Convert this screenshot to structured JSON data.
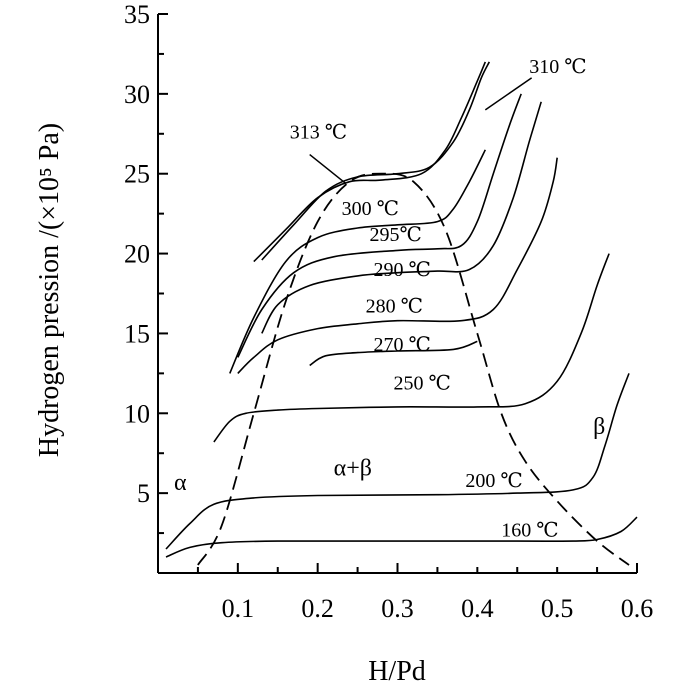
{
  "chart_data": {
    "type": "line",
    "title": "",
    "xlabel": "H/Pd",
    "ylabel": "Hydrogen pression /(×10⁵ Pa)",
    "xlim": [
      0.0,
      0.6
    ],
    "ylim": [
      0,
      35
    ],
    "x_ticks": [
      "0.1",
      "0.2",
      "0.3",
      "0.4",
      "0.5",
      "0.6"
    ],
    "y_ticks": [
      "5",
      "10",
      "15",
      "20",
      "25",
      "30",
      "35"
    ],
    "grid": false,
    "line_color": "#000000",
    "series": [
      {
        "name": "160 ℃",
        "x": [
          0.01,
          0.04,
          0.08,
          0.15,
          0.3,
          0.45,
          0.52,
          0.55,
          0.58,
          0.6
        ],
        "y": [
          1.0,
          1.6,
          1.9,
          2.0,
          2.0,
          2.0,
          2.0,
          2.1,
          2.6,
          3.5
        ]
      },
      {
        "name": "200 ℃",
        "x": [
          0.01,
          0.04,
          0.07,
          0.12,
          0.2,
          0.35,
          0.45,
          0.52,
          0.545,
          0.56,
          0.575,
          0.59
        ],
        "y": [
          1.5,
          3.1,
          4.3,
          4.7,
          4.85,
          4.9,
          5.0,
          5.2,
          6.0,
          8.0,
          10.5,
          12.5
        ]
      },
      {
        "name": "250 ℃",
        "x": [
          0.07,
          0.09,
          0.11,
          0.15,
          0.2,
          0.3,
          0.4,
          0.46,
          0.5,
          0.53,
          0.55,
          0.565
        ],
        "y": [
          8.2,
          9.5,
          10.0,
          10.2,
          10.3,
          10.4,
          10.4,
          10.6,
          12.0,
          15.0,
          18.0,
          20.0
        ]
      },
      {
        "name": "270 ℃",
        "x": [
          0.19,
          0.21,
          0.25,
          0.3,
          0.37,
          0.4
        ],
        "y": [
          13.0,
          13.6,
          13.8,
          13.9,
          14.0,
          14.5
        ]
      },
      {
        "name": "280 ℃",
        "x": [
          0.1,
          0.12,
          0.15,
          0.2,
          0.25,
          0.3,
          0.38,
          0.42,
          0.45,
          0.48,
          0.495,
          0.5
        ],
        "y": [
          12.5,
          13.5,
          14.6,
          15.3,
          15.6,
          15.8,
          15.8,
          16.5,
          19.0,
          22.0,
          24.5,
          26.0
        ]
      },
      {
        "name": "290 ℃",
        "x": [
          0.13,
          0.15,
          0.19,
          0.25,
          0.3,
          0.35,
          0.39,
          0.42,
          0.445,
          0.465,
          0.48
        ],
        "y": [
          15.0,
          16.8,
          18.0,
          18.6,
          18.8,
          18.9,
          19.0,
          20.5,
          23.5,
          27.0,
          29.5
        ]
      },
      {
        "name": "295℃",
        "x": [
          0.1,
          0.13,
          0.17,
          0.22,
          0.3,
          0.35,
          0.38,
          0.4,
          0.42,
          0.44,
          0.455
        ],
        "y": [
          13.5,
          16.5,
          18.8,
          19.8,
          20.2,
          20.3,
          20.5,
          22.0,
          25.0,
          28.0,
          30.0
        ]
      },
      {
        "name": "300 ℃",
        "x": [
          0.09,
          0.12,
          0.16,
          0.2,
          0.25,
          0.3,
          0.35,
          0.37,
          0.39,
          0.41
        ],
        "y": [
          12.5,
          16.0,
          19.5,
          21.0,
          21.6,
          21.8,
          22.0,
          22.8,
          24.5,
          26.5
        ]
      },
      {
        "name": "310 ℃",
        "x": [
          0.12,
          0.16,
          0.2,
          0.24,
          0.28,
          0.33,
          0.36,
          0.38,
          0.4,
          0.41
        ],
        "y": [
          19.5,
          21.5,
          23.5,
          24.5,
          24.6,
          25.0,
          26.5,
          28.5,
          30.8,
          32.0
        ]
      },
      {
        "name": "313 ℃",
        "x": [
          0.13,
          0.17,
          0.21,
          0.25,
          0.3,
          0.34,
          0.37,
          0.39,
          0.405,
          0.415
        ],
        "y": [
          19.6,
          21.8,
          23.9,
          24.8,
          25.0,
          25.4,
          27.0,
          29.0,
          31.0,
          32.0
        ]
      }
    ],
    "phase_boundary": {
      "style": "dashed",
      "x": [
        0.05,
        0.08,
        0.12,
        0.16,
        0.2,
        0.24,
        0.28,
        0.32,
        0.36,
        0.4,
        0.43,
        0.46,
        0.5,
        0.55,
        0.59
      ],
      "y": [
        0.5,
        3.0,
        10.0,
        17.0,
        22.0,
        24.5,
        25.0,
        24.5,
        21.5,
        15.0,
        10.0,
        7.0,
        4.5,
        2.0,
        0.5
      ]
    },
    "annotations": [
      {
        "text": "313 ℃",
        "x": 0.165,
        "y": 27.2
      },
      {
        "text": "310 ℃",
        "x": 0.465,
        "y": 31.3
      },
      {
        "text": "300 ℃",
        "x": 0.23,
        "y": 22.4
      },
      {
        "text": "295℃",
        "x": 0.265,
        "y": 20.8
      },
      {
        "text": "290 ℃",
        "x": 0.27,
        "y": 18.6
      },
      {
        "text": "280 ℃",
        "x": 0.26,
        "y": 16.3
      },
      {
        "text": "270 ℃",
        "x": 0.27,
        "y": 13.9
      },
      {
        "text": "250 ℃",
        "x": 0.295,
        "y": 11.5
      },
      {
        "text": "200 ℃",
        "x": 0.385,
        "y": 5.4
      },
      {
        "text": "160 ℃",
        "x": 0.43,
        "y": 2.3
      },
      {
        "text": "α",
        "x": 0.02,
        "y": 5.2
      },
      {
        "text": "α+β",
        "x": 0.22,
        "y": 6.1
      },
      {
        "text": "β",
        "x": 0.545,
        "y": 8.7
      }
    ]
  }
}
